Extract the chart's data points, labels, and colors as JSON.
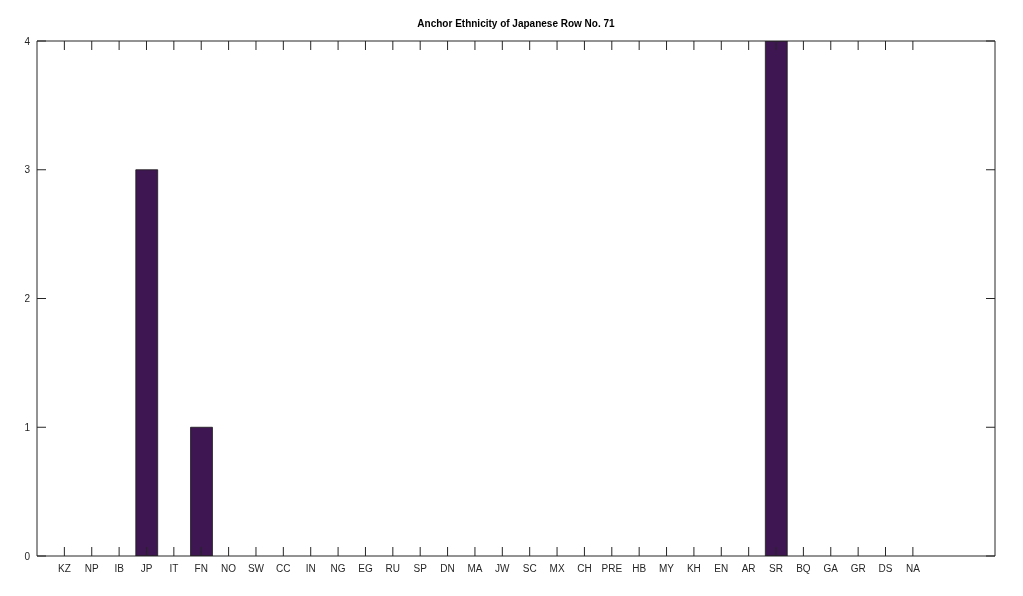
{
  "chart_data": {
    "type": "bar",
    "title": "Anchor Ethnicity of Japanese Row No. 71",
    "categories": [
      "KZ",
      "NP",
      "IB",
      "JP",
      "IT",
      "FN",
      "NO",
      "SW",
      "CC",
      "IN",
      "NG",
      "EG",
      "RU",
      "SP",
      "DN",
      "MA",
      "JW",
      "SC",
      "MX",
      "CH",
      "PRE",
      "HB",
      "MY",
      "KH",
      "EN",
      "AR",
      "SR",
      "BQ",
      "GA",
      "GR",
      "DS",
      "NA"
    ],
    "values": [
      0,
      0,
      0,
      3,
      0,
      1,
      0,
      0,
      0,
      0,
      0,
      0,
      0,
      0,
      0,
      0,
      0,
      0,
      0,
      0,
      0,
      0,
      0,
      0,
      0,
      0,
      4,
      0,
      0,
      0,
      0,
      0
    ],
    "color": "#3e1752",
    "ylim": [
      0,
      4
    ],
    "yticks": [
      0,
      1,
      2,
      3,
      4
    ]
  }
}
